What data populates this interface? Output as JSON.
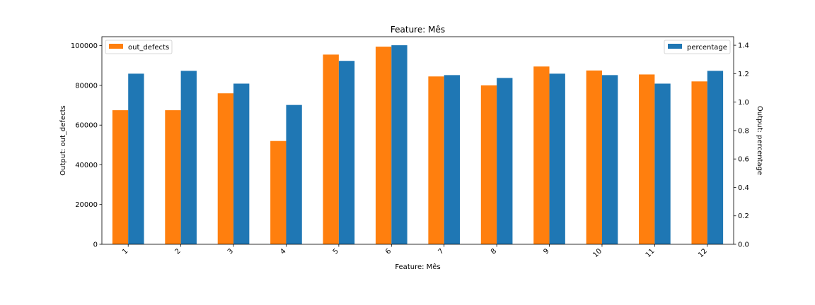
{
  "chart_data": {
    "type": "bar",
    "title": "Feature: Mês",
    "xlabel": "Feature: Mês",
    "ylabel_left": "Output: out_defects",
    "ylabel_right": "Output: percentage",
    "categories": [
      "1",
      "2",
      "3",
      "4",
      "5",
      "6",
      "7",
      "8",
      "9",
      "10",
      "11",
      "12"
    ],
    "series": [
      {
        "name": "out_defects",
        "axis": "left",
        "color": "#ff7f0e",
        "values": [
          67500,
          67500,
          76000,
          52000,
          95500,
          99500,
          84500,
          80000,
          89500,
          87500,
          85500,
          82000
        ]
      },
      {
        "name": "percentage",
        "axis": "right",
        "color": "#1f77b4",
        "values": [
          1.2,
          1.22,
          1.13,
          0.98,
          1.29,
          1.4,
          1.19,
          1.17,
          1.2,
          1.19,
          1.13,
          1.22
        ]
      }
    ],
    "ylim_left": [
      0,
      104500
    ],
    "ylim_right": [
      0,
      1.46
    ],
    "yticks_left": [
      0,
      20000,
      40000,
      60000,
      80000,
      100000
    ],
    "yticks_right": [
      0.0,
      0.2,
      0.4,
      0.6,
      0.8,
      1.0,
      1.2,
      1.4
    ],
    "yticks_right_labels": [
      "0.0",
      "0.2",
      "0.4",
      "0.6",
      "0.8",
      "1.0",
      "1.2",
      "1.4"
    ],
    "grid": false,
    "legend_left_placement": "top-left",
    "legend_right_placement": "top-right"
  }
}
